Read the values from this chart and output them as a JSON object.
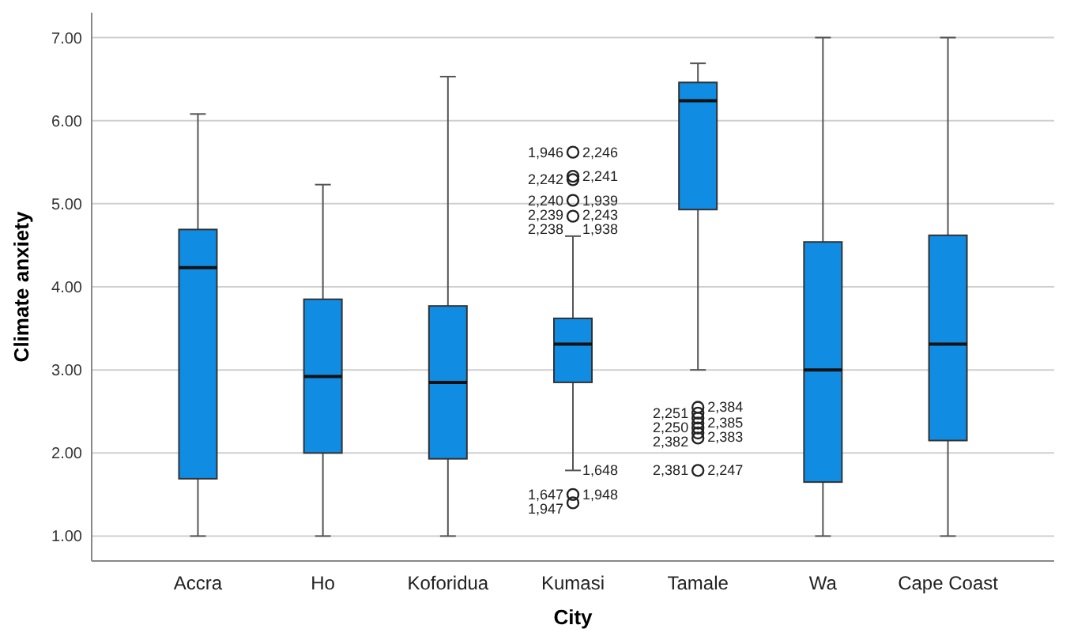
{
  "chart_data": {
    "type": "box",
    "xlabel": "City",
    "ylabel": "Climate anxiety",
    "categories": [
      "Accra",
      "Ho",
      "Koforidua",
      "Kumasi",
      "Tamale",
      "Wa",
      "Cape Coast"
    ],
    "ylim": [
      0.7,
      7.3
    ],
    "yticks": [
      {
        "value": 1,
        "label": "1.00"
      },
      {
        "value": 2,
        "label": "2.00"
      },
      {
        "value": 3,
        "label": "3.00"
      },
      {
        "value": 4,
        "label": "4.00"
      },
      {
        "value": 5,
        "label": "5.00"
      },
      {
        "value": 6,
        "label": "6.00"
      },
      {
        "value": 7,
        "label": "7.00"
      }
    ],
    "grid": "y",
    "marker": "circle",
    "series": [
      {
        "color": "#118ce3",
        "boxes": [
          {
            "low": 1,
            "q1": 1.69,
            "median": 4.23,
            "q3": 4.69,
            "high": 6.08
          },
          {
            "low": 1,
            "q1": 2.0,
            "median": 2.92,
            "q3": 3.85,
            "high": 5.23
          },
          {
            "low": 1,
            "q1": 1.93,
            "median": 2.85,
            "q3": 3.77,
            "high": 6.53
          },
          {
            "low": 1.79,
            "q1": 2.85,
            "median": 3.31,
            "q3": 3.62,
            "high": 4.61
          },
          {
            "low": 3.0,
            "q1": 4.93,
            "median": 6.24,
            "q3": 6.46,
            "high": 6.69
          },
          {
            "low": 1,
            "q1": 1.65,
            "median": 3.0,
            "q3": 4.54,
            "high": 7
          },
          {
            "low": 1,
            "q1": 2.15,
            "median": 3.31,
            "q3": 4.62,
            "high": 7
          }
        ]
      },
      {
        "type": "scatter",
        "x": [
          "Kumasi",
          "Kumasi",
          "Kumasi",
          "Kumasi",
          "Kumasi",
          "Kumasi",
          "Kumasi",
          "Tamale",
          "Tamale",
          "Tamale",
          "Tamale",
          "Tamale",
          "Tamale",
          "Tamale",
          "Tamale"
        ],
        "values": [
          5.62,
          5.33,
          5.29,
          5.04,
          4.85,
          1.5,
          1.4,
          2.55,
          2.48,
          2.42,
          2.36,
          2.3,
          2.24,
          2.18,
          1.79
        ]
      }
    ],
    "annotations": [
      {
        "text": "1,946",
        "x": "Kumasi",
        "y": 5.62
      },
      {
        "text": "2,246",
        "x": "Kumasi",
        "y": 5.62
      },
      {
        "text": "2,242",
        "x": "Kumasi",
        "y": 5.29
      },
      {
        "text": "2,241",
        "x": "Kumasi",
        "y": 5.33
      },
      {
        "text": "2,240",
        "x": "Kumasi",
        "y": 5.04
      },
      {
        "text": "1,939",
        "x": "Kumasi",
        "y": 5.04
      },
      {
        "text": "2,239",
        "x": "Kumasi",
        "y": 5.04
      },
      {
        "text": "2,243",
        "x": "Kumasi",
        "y": 5.04
      },
      {
        "text": "2,238",
        "x": "Kumasi",
        "y": 4.85
      },
      {
        "text": "1,938",
        "x": "Kumasi",
        "y": 4.85
      },
      {
        "text": "1,647",
        "x": "Kumasi",
        "y": 1.5
      },
      {
        "text": "1,948",
        "x": "Kumasi",
        "y": 1.5
      },
      {
        "text": "1,947",
        "x": "Kumasi",
        "y": 1.4
      },
      {
        "text": "1,648",
        "x": "Kumasi",
        "y": 1.79
      },
      {
        "text": "2,251",
        "x": "Tamale",
        "y": 2.48
      },
      {
        "text": "2,384",
        "x": "Tamale",
        "y": 2.55
      },
      {
        "text": "2,250",
        "x": "Tamale",
        "y": 2.36
      },
      {
        "text": "2,385",
        "x": "Tamale",
        "y": 2.36
      },
      {
        "text": "2,382",
        "x": "Tamale",
        "y": 2.2
      },
      {
        "text": "2,383",
        "x": "Tamale",
        "y": 2.2
      },
      {
        "text": "2,381",
        "x": "Tamale",
        "y": 1.79
      },
      {
        "text": "2,247",
        "x": "Tamale",
        "y": 1.79
      }
    ]
  }
}
